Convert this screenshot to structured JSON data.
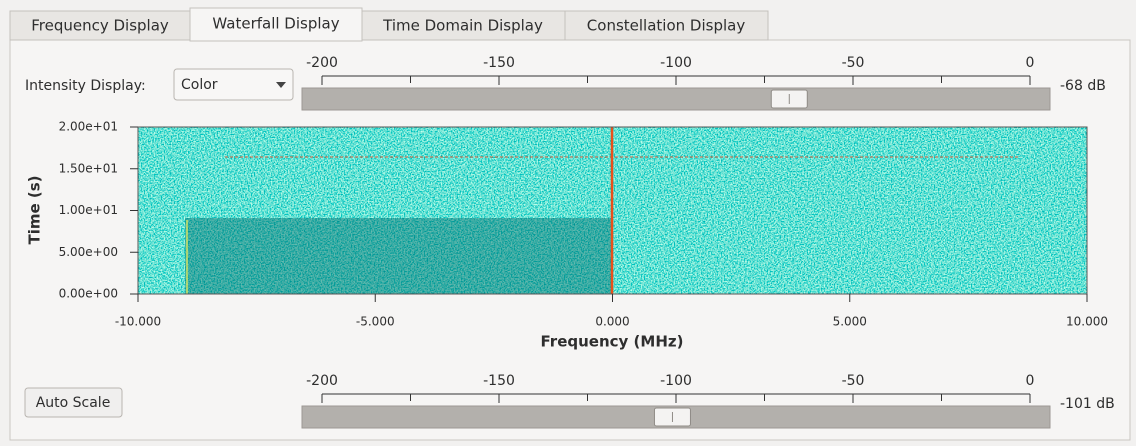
{
  "tabs": [
    "Frequency Display",
    "Waterfall Display",
    "Time Domain Display",
    "Constellation Display"
  ],
  "intensity": {
    "label": "Intensity Display:",
    "value": "Color"
  },
  "top_slider": {
    "lim": [
      -200,
      0
    ],
    "ticks": [
      -200,
      -150,
      -100,
      -50,
      0
    ],
    "minor_ticks": [
      -175,
      -125,
      -75,
      -25
    ],
    "value": {
      "value": -68,
      "label": "-68 dB"
    }
  },
  "chart_data": {
    "type": "waterfall",
    "xlabel": "Frequency (MHz)",
    "ylabel": "Time (s)",
    "xlim": [
      -10,
      10
    ],
    "ylim": [
      0,
      20
    ],
    "xticks": [
      {
        "value": -10,
        "label": "-10.000"
      },
      {
        "value": -5,
        "label": "-5.000"
      },
      {
        "value": 0,
        "label": "0.000"
      },
      {
        "value": 5,
        "label": "5.000"
      },
      {
        "value": 10,
        "label": "10.000"
      }
    ],
    "yticks": [
      {
        "value": 0,
        "label": "0.00e+00"
      },
      {
        "value": 5,
        "label": "5.00e+00"
      },
      {
        "value": 10,
        "label": "1.00e+01"
      },
      {
        "value": 15,
        "label": "1.50e+01"
      },
      {
        "value": 20,
        "label": "2.00e+01"
      }
    ]
  },
  "auto_scale_button": "Auto Scale",
  "bottom_slider": {
    "lim": [
      -200,
      0
    ],
    "ticks": [
      -200,
      -150,
      -100,
      -50,
      0
    ],
    "minor_ticks": [
      -175,
      -125,
      -75,
      -25
    ],
    "value": {
      "value": -101,
      "label": "-101 dB"
    }
  }
}
